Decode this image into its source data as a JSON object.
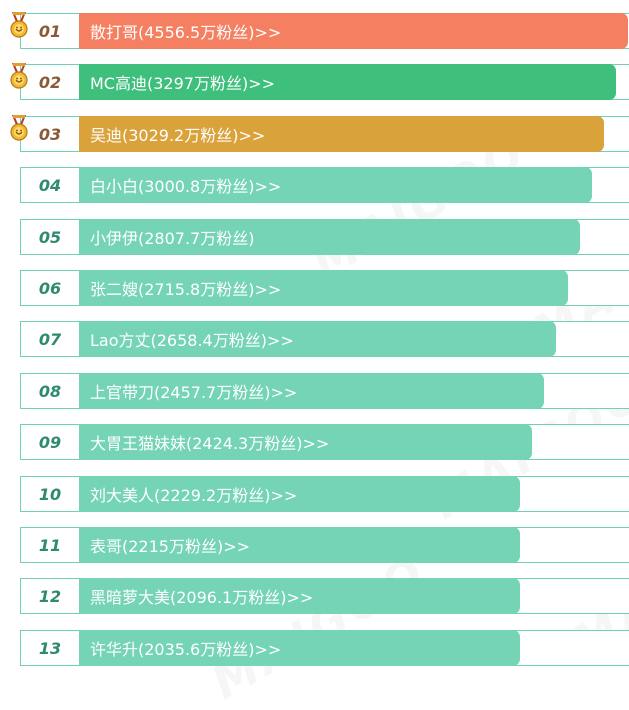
{
  "colors": {
    "rank1": "#f47f61",
    "rank2": "#3ebf7b",
    "rank3": "#d9a23a",
    "default_bar": "#74d4b5",
    "row_border": "#6fd1b5",
    "rank_number": "#2e8a70",
    "medal_rank_number": "#8a5a36"
  },
  "watermark": "MAIGOO",
  "ranking": [
    {
      "rank": "01",
      "label": "散打哥(4556.5万粉丝)>>",
      "fans": 4556.5,
      "medal": "medal-icon"
    },
    {
      "rank": "02",
      "label": "MC高迪(3297万粉丝)>>",
      "fans": 3297,
      "medal": "medal-icon"
    },
    {
      "rank": "03",
      "label": "吴迪(3029.2万粉丝)>>",
      "fans": 3029.2,
      "medal": "medal-icon"
    },
    {
      "rank": "04",
      "label": "白小白(3000.8万粉丝)>>",
      "fans": 3000.8
    },
    {
      "rank": "05",
      "label": "小伊伊(2807.7万粉丝)",
      "fans": 2807.7
    },
    {
      "rank": "06",
      "label": "张二嫂(2715.8万粉丝)>>",
      "fans": 2715.8
    },
    {
      "rank": "07",
      "label": "Lao方丈(2658.4万粉丝)>>",
      "fans": 2658.4
    },
    {
      "rank": "08",
      "label": "上官带刀(2457.7万粉丝)>>",
      "fans": 2457.7
    },
    {
      "rank": "09",
      "label": "大胃王猫妹妹(2424.3万粉丝)>>",
      "fans": 2424.3
    },
    {
      "rank": "10",
      "label": "刘大美人(2229.2万粉丝)>>",
      "fans": 2229.2
    },
    {
      "rank": "11",
      "label": "表哥(2215万粉丝)>>",
      "fans": 2215
    },
    {
      "rank": "12",
      "label": "黑暗萝大美(2096.1万粉丝)>>",
      "fans": 2096.1
    },
    {
      "rank": "13",
      "label": "许华升(2035.6万粉丝)>>",
      "fans": 2035.6
    }
  ]
}
